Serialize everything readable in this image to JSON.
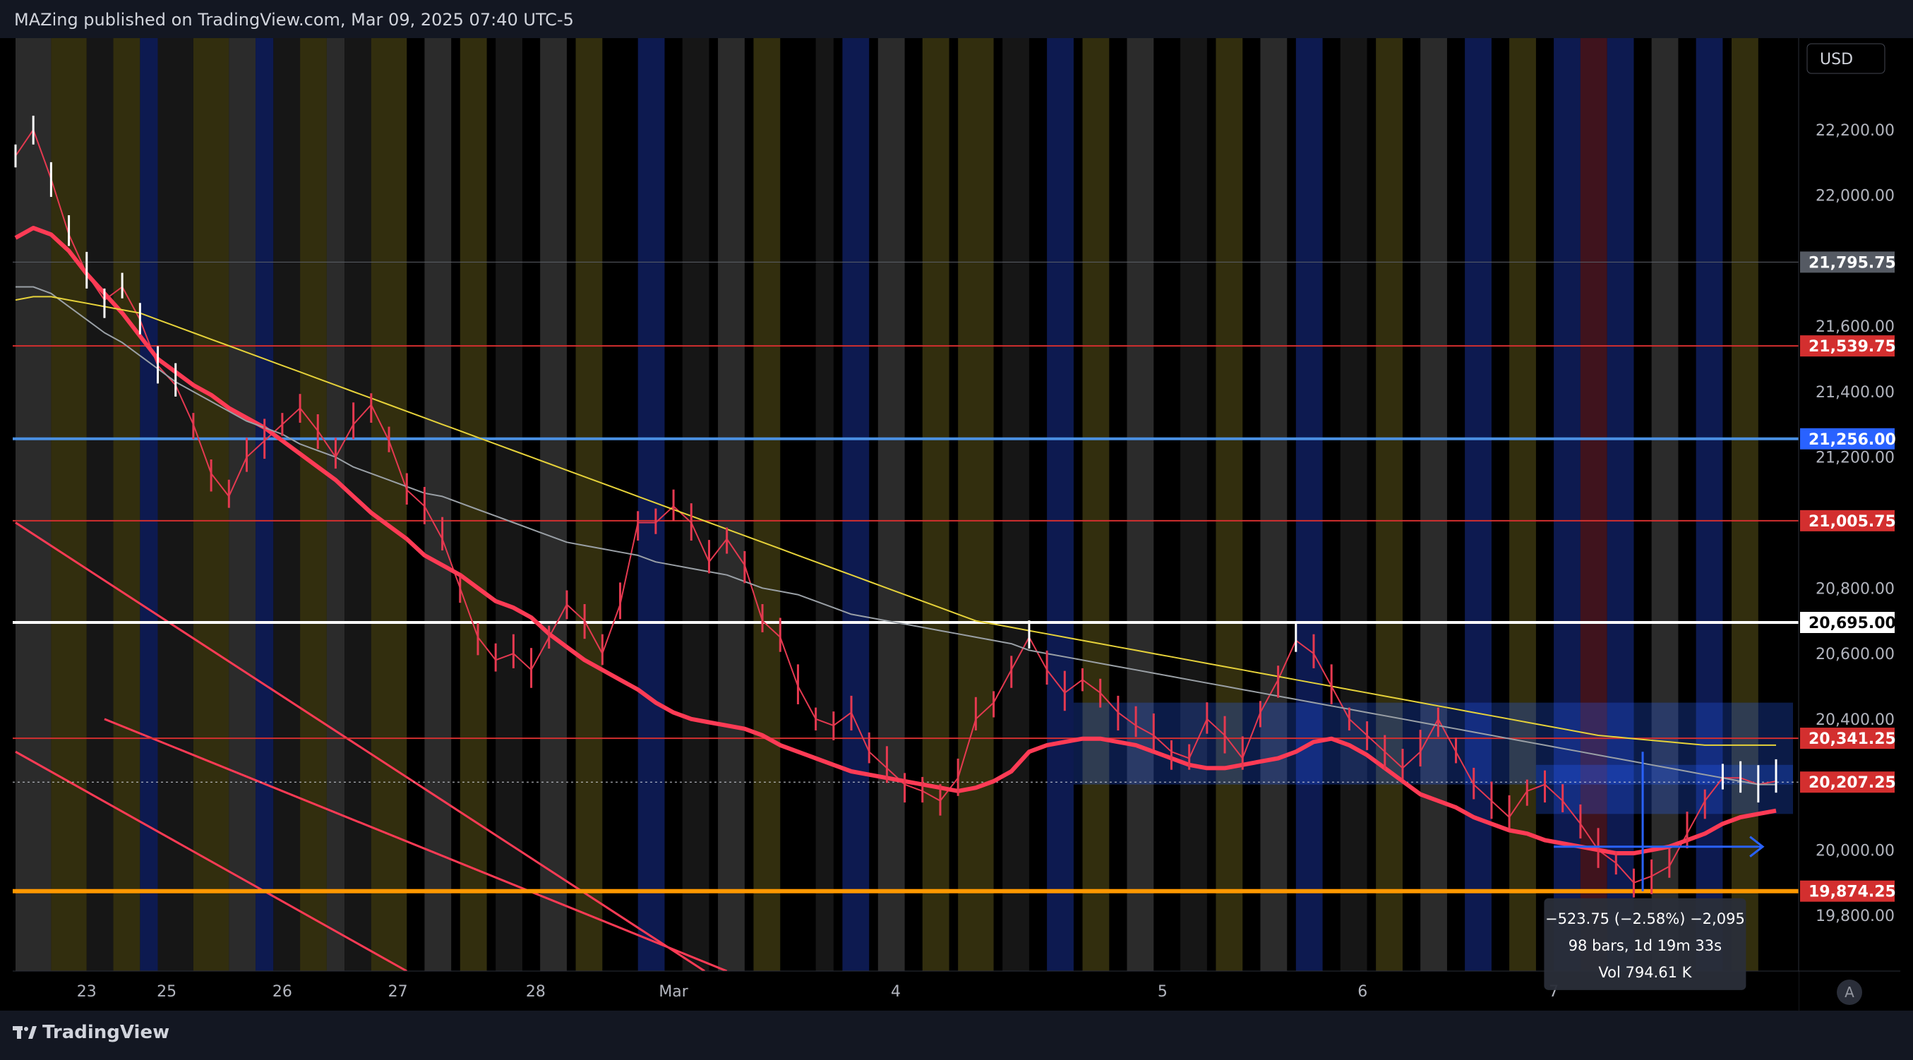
{
  "header": {
    "publish_text": "MAZing published on TradingView.com, Mar 09, 2025 07:40 UTC-5"
  },
  "footer": {
    "brand": "TradingView",
    "logo_icon": "tradingview-logo-icon"
  },
  "price_scale": {
    "currency": "USD",
    "ticks": [
      "22,200.00",
      "22,000.00",
      "21,600.00",
      "21,400.00",
      "21,200.00",
      "20,800.00",
      "20,600.00",
      "20,400.00",
      "20,000.00",
      "19,800.00"
    ],
    "tick_values": [
      22200,
      22000,
      21600,
      21400,
      21200,
      20800,
      20600,
      20400,
      20000,
      19800
    ]
  },
  "time_axis": {
    "labels": [
      "23",
      "25",
      "26",
      "27",
      "28",
      "Mar",
      "4",
      "5",
      "6",
      "7"
    ],
    "bar_index": [
      16,
      34,
      60,
      86,
      117,
      148,
      198,
      258,
      303,
      346
    ]
  },
  "price_labels": [
    {
      "text": "21,795.75",
      "value": 21795.75,
      "color": "#555a63"
    },
    {
      "text": "21,539.75",
      "value": 21539.75,
      "color": "#d32f2f"
    },
    {
      "text": "21,256.00",
      "value": 21256.0,
      "color": "#2962ff"
    },
    {
      "text": "21,005.75",
      "value": 21005.75,
      "color": "#d32f2f"
    },
    {
      "text": "20,695.00",
      "value": 20695.0,
      "color": "#ffffff"
    },
    {
      "text": "20,341.25",
      "value": 20341.25,
      "color": "#d32f2f"
    },
    {
      "text": "20,207.25",
      "value": 20207.25,
      "color": "#d32f2f"
    },
    {
      "text": "19,874.25",
      "value": 19874.25,
      "color": "#d32f2f"
    }
  ],
  "measure_box": {
    "line1": "−523.75 (−2.58%) −2,095",
    "line2": "98 bars, 1d 19m 33s",
    "line3": "Vol 794.61 K"
  },
  "auto_scale_button": "A",
  "chart_data": {
    "type": "line",
    "title": "",
    "xlabel": "",
    "ylabel": "",
    "ylim": [
      19630,
      22480
    ],
    "x_unit": "bar",
    "x": [
      0,
      4,
      8,
      12,
      16,
      20,
      24,
      28,
      32,
      36,
      40,
      44,
      48,
      52,
      56,
      60,
      64,
      68,
      72,
      76,
      80,
      84,
      88,
      92,
      96,
      100,
      104,
      108,
      112,
      116,
      120,
      124,
      128,
      132,
      136,
      140,
      144,
      148,
      152,
      156,
      160,
      164,
      168,
      172,
      176,
      180,
      184,
      188,
      192,
      196,
      200,
      204,
      208,
      212,
      216,
      220,
      224,
      228,
      232,
      236,
      240,
      244,
      248,
      252,
      256,
      260,
      264,
      268,
      272,
      276,
      280,
      284,
      288,
      292,
      296,
      300,
      304,
      308,
      312,
      316,
      320,
      324,
      328,
      332,
      336,
      340,
      344,
      348,
      352,
      356,
      360,
      364,
      368,
      372,
      376,
      380,
      384,
      388,
      392,
      396
    ],
    "series": [
      {
        "values": [
          22120,
          22200,
          22050,
          21880,
          21760,
          21680,
          21720,
          21620,
          21480,
          21420,
          21300,
          21150,
          21080,
          21200,
          21250,
          21300,
          21350,
          21280,
          21200,
          21300,
          21360,
          21250,
          21100,
          21050,
          20950,
          20800,
          20650,
          20580,
          20600,
          20550,
          20650,
          20750,
          20700,
          20600,
          20750,
          21000,
          21000,
          21050,
          21000,
          20880,
          20950,
          20870,
          20700,
          20650,
          20500,
          20400,
          20380,
          20420,
          20300,
          20250,
          20200,
          20180,
          20150,
          20220,
          20400,
          20450,
          20550,
          20650,
          20550,
          20480,
          20520,
          20480,
          20420,
          20380,
          20350,
          20300,
          20280,
          20400,
          20350,
          20280,
          20420,
          20520,
          20640,
          20600,
          20500,
          20400,
          20350,
          20300,
          20250,
          20300,
          20400,
          20300,
          20200,
          20150,
          20100,
          20180,
          20200,
          20150,
          20080,
          20000,
          19960,
          19900,
          19920,
          19950,
          20050,
          20150,
          20220,
          20220,
          20200,
          20210
        ]
      },
      {
        "values": [
          21870,
          21900,
          21880,
          21830,
          21760,
          21700,
          21640,
          21570,
          21500,
          21460,
          21420,
          21390,
          21350,
          21320,
          21290,
          21250,
          21210,
          21170,
          21130,
          21080,
          21030,
          20990,
          20950,
          20900,
          20870,
          20840,
          20800,
          20760,
          20740,
          20710,
          20660,
          20620,
          20580,
          20550,
          20520,
          20490,
          20450,
          20420,
          20400,
          20390,
          20380,
          20370,
          20350,
          20320,
          20300,
          20280,
          20260,
          20240,
          20230,
          20220,
          20210,
          20200,
          20190,
          20180,
          20190,
          20210,
          20240,
          20300,
          20320,
          20330,
          20340,
          20340,
          20330,
          20320,
          20300,
          20280,
          20260,
          20250,
          20250,
          20260,
          20270,
          20280,
          20300,
          20330,
          20340,
          20320,
          20290,
          20250,
          20210,
          20170,
          20150,
          20130,
          20100,
          20080,
          20060,
          20050,
          20030,
          20020,
          20010,
          20000,
          19990,
          19990,
          20000,
          20010,
          20030,
          20050,
          20080,
          20100,
          20110,
          20120
        ]
      },
      {
        "values": [
          21720,
          21720,
          21700,
          21660,
          21620,
          21580,
          21550,
          21510,
          21470,
          21430,
          21400,
          21370,
          21340,
          21310,
          21290,
          21270,
          21240,
          21220,
          21200,
          21170,
          21150,
          21130,
          21110,
          21090,
          21080,
          21060,
          21040,
          21020,
          21000,
          20980,
          20960,
          20940,
          20930,
          20920,
          20910,
          20900,
          20880,
          20870,
          20860,
          20850,
          20840,
          20820,
          20800,
          20790,
          20780,
          20760,
          20740,
          20720,
          20710,
          20700,
          20690,
          20680,
          20670,
          20660,
          20650,
          20640,
          20630,
          20610,
          20600,
          20590,
          20580,
          20570,
          20560,
          20550,
          20540,
          20530,
          20520,
          20510,
          20500,
          20490,
          20480,
          20470,
          20460,
          20450,
          20440,
          20430,
          20420,
          20410,
          20400,
          20390,
          20380,
          20370,
          20360,
          20350,
          20340,
          20330,
          20320,
          20310,
          20300,
          20290,
          20280,
          20270,
          20260,
          20250,
          20240,
          20230,
          20220,
          20210,
          20200,
          20200
        ]
      },
      {
        "values": [
          21680,
          21690,
          21690,
          21680,
          21670,
          21660,
          21650,
          21640,
          21620,
          21600,
          21580,
          21560,
          21540,
          21520,
          21500,
          21480,
          21460,
          21440,
          21420,
          21400,
          21380,
          21360,
          21340,
          21320,
          21300,
          21280,
          21260,
          21240,
          21220,
          21200,
          21180,
          21160,
          21140,
          21120,
          21100,
          21080,
          21060,
          21040,
          21020,
          21000,
          20980,
          20960,
          20940,
          20920,
          20900,
          20880,
          20860,
          20840,
          20820,
          20800,
          20780,
          20760,
          20740,
          20720,
          20700,
          20690,
          20680,
          20670,
          20660,
          20650,
          20640,
          20630,
          20620,
          20610,
          20600,
          20590,
          20580,
          20570,
          20560,
          20550,
          20540,
          20530,
          20520,
          20510,
          20500,
          20490,
          20480,
          20470,
          20460,
          20450,
          20440,
          20430,
          20420,
          20410,
          20400,
          20390,
          20380,
          20370,
          20360,
          20350,
          20345,
          20340,
          20335,
          20330,
          20325,
          20320,
          20320,
          20320,
          20320,
          20320
        ]
      }
    ],
    "series_colors": [
      "#e53950",
      "#ff3b55",
      "#9aa0a6",
      "#e6d23a"
    ],
    "horizontal_levels": [
      {
        "value": 21795.75,
        "color": "#5d6169",
        "width": 1
      },
      {
        "value": 21539.75,
        "color": "#d32f2f",
        "width": 2
      },
      {
        "value": 21256.0,
        "color": "#4a90e2",
        "width": 4
      },
      {
        "value": 21005.75,
        "color": "#d32f2f",
        "width": 2
      },
      {
        "value": 20695.0,
        "color": "#ffffff",
        "width": 4
      },
      {
        "value": 20341.25,
        "color": "#d32f2f",
        "width": 2
      },
      {
        "value": 20207.25,
        "color": "#d1d4dc",
        "width": 1,
        "dashed": true
      },
      {
        "value": 19874.25,
        "color": "#ff9800",
        "width": 6
      }
    ],
    "zones": [
      {
        "from": 20200,
        "to": 20450,
        "color": "#2962ff"
      },
      {
        "from": 20110,
        "to": 20260,
        "color": "#2962ff"
      }
    ],
    "trendlines": [
      {
        "bar1": 0,
        "price1": 21000,
        "bar2": 155,
        "price2": 19630,
        "color": "#ff3b55"
      },
      {
        "bar1": 0,
        "price1": 20300,
        "bar2": 88,
        "price2": 19630,
        "color": "#ff3b55"
      },
      {
        "bar1": 20,
        "price1": 20400,
        "bar2": 160,
        "price2": 19630,
        "color": "#ff3b55"
      }
    ],
    "background_bands": [
      {
        "start": 0,
        "end": 8,
        "color": "#333333"
      },
      {
        "start": 8,
        "end": 16,
        "color": "#3b3610"
      },
      {
        "start": 16,
        "end": 22,
        "color": "#1a1a1a"
      },
      {
        "start": 22,
        "end": 28,
        "color": "#3b3610"
      },
      {
        "start": 28,
        "end": 32,
        "color": "#0f1f5e"
      },
      {
        "start": 32,
        "end": 40,
        "color": "#1a1a1a"
      },
      {
        "start": 40,
        "end": 48,
        "color": "#3b3610"
      },
      {
        "start": 48,
        "end": 54,
        "color": "#333333"
      },
      {
        "start": 54,
        "end": 58,
        "color": "#0f1f5e"
      },
      {
        "start": 58,
        "end": 64,
        "color": "#1a1a1a"
      },
      {
        "start": 64,
        "end": 70,
        "color": "#3b3610"
      },
      {
        "start": 70,
        "end": 74,
        "color": "#333333"
      },
      {
        "start": 74,
        "end": 80,
        "color": "#1a1a1a"
      },
      {
        "start": 80,
        "end": 88,
        "color": "#3b3610"
      },
      {
        "start": 92,
        "end": 98,
        "color": "#333333"
      },
      {
        "start": 100,
        "end": 106,
        "color": "#3b3610"
      },
      {
        "start": 108,
        "end": 114,
        "color": "#1a1a1a"
      },
      {
        "start": 118,
        "end": 124,
        "color": "#333333"
      },
      {
        "start": 126,
        "end": 132,
        "color": "#3b3610"
      },
      {
        "start": 140,
        "end": 146,
        "color": "#0f1f5e"
      },
      {
        "start": 150,
        "end": 156,
        "color": "#1a1a1a"
      },
      {
        "start": 158,
        "end": 164,
        "color": "#333333"
      },
      {
        "start": 166,
        "end": 172,
        "color": "#3b3610"
      },
      {
        "start": 180,
        "end": 184,
        "color": "#1a1a1a"
      },
      {
        "start": 186,
        "end": 192,
        "color": "#0f1f5e"
      },
      {
        "start": 194,
        "end": 200,
        "color": "#333333"
      },
      {
        "start": 204,
        "end": 210,
        "color": "#3b3610"
      },
      {
        "start": 212,
        "end": 220,
        "color": "#3b3610"
      },
      {
        "start": 222,
        "end": 228,
        "color": "#1a1a1a"
      },
      {
        "start": 232,
        "end": 238,
        "color": "#0f1f5e"
      },
      {
        "start": 240,
        "end": 246,
        "color": "#3b3610"
      },
      {
        "start": 250,
        "end": 256,
        "color": "#333333"
      },
      {
        "start": 262,
        "end": 268,
        "color": "#1a1a1a"
      },
      {
        "start": 270,
        "end": 276,
        "color": "#3b3610"
      },
      {
        "start": 280,
        "end": 286,
        "color": "#333333"
      },
      {
        "start": 288,
        "end": 294,
        "color": "#0f1f5e"
      },
      {
        "start": 298,
        "end": 304,
        "color": "#1a1a1a"
      },
      {
        "start": 306,
        "end": 312,
        "color": "#3b3610"
      },
      {
        "start": 316,
        "end": 322,
        "color": "#333333"
      },
      {
        "start": 326,
        "end": 332,
        "color": "#0f1f5e"
      },
      {
        "start": 336,
        "end": 342,
        "color": "#3b3610"
      },
      {
        "start": 346,
        "end": 352,
        "color": "#0f1f5e"
      },
      {
        "start": 352,
        "end": 358,
        "color": "#4a1622"
      },
      {
        "start": 358,
        "end": 364,
        "color": "#0f1f5e"
      },
      {
        "start": 368,
        "end": 374,
        "color": "#333333"
      },
      {
        "start": 378,
        "end": 384,
        "color": "#0f1f5e"
      },
      {
        "start": 386,
        "end": 392,
        "color": "#3b3610"
      }
    ]
  }
}
